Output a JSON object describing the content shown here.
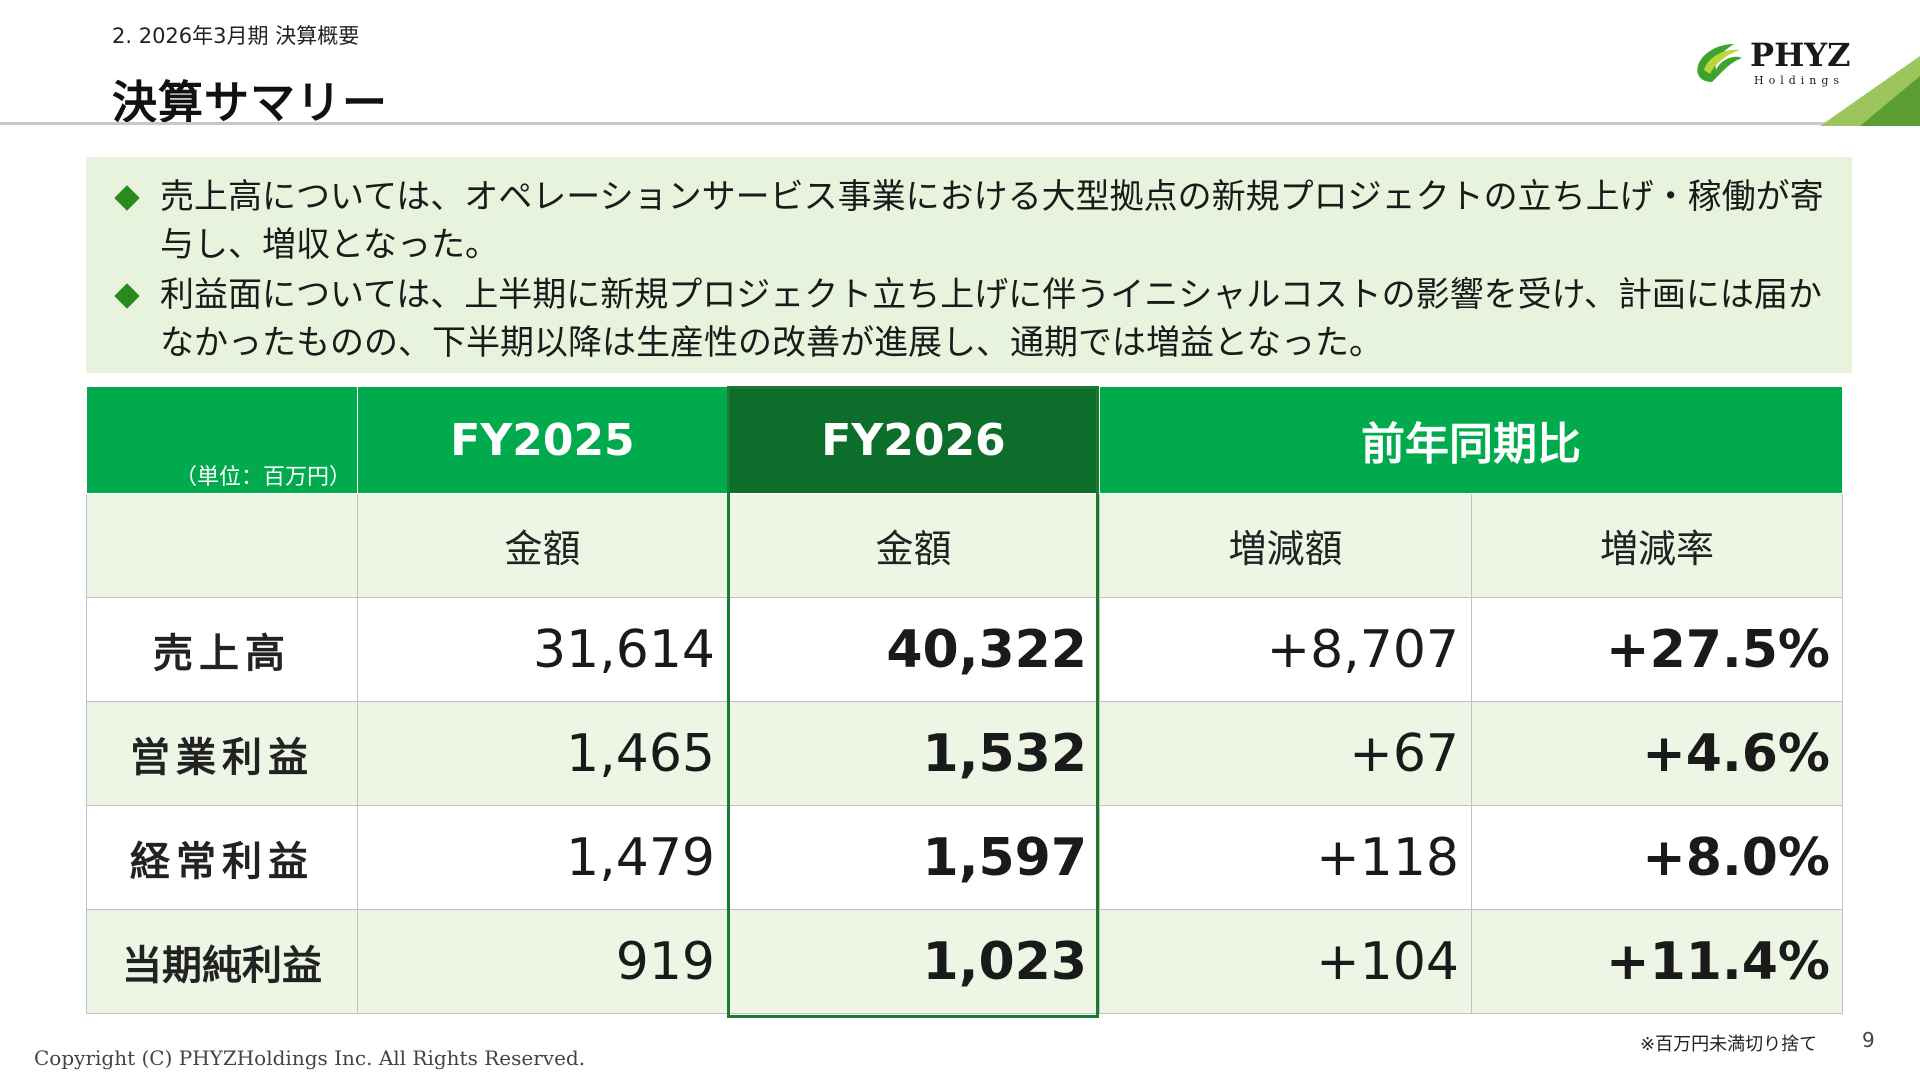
{
  "header": {
    "section": "2. 2026年3月期  決算概要",
    "title": "決算サマリー",
    "logo_text": "PHYZ",
    "logo_sub": "Holdings"
  },
  "summary": [
    "売上高については、オペレーションサービス事業における大型拠点の新規プロジェクトの立ち上げ・稼働が寄与し、増収となった。",
    "利益面については、上半期に新規プロジェクト立ち上げに伴うイニシャルコストの影響を受け、計画には届かなかったものの、下半期以降は生産性の改善が進展し、通期では増益となった。"
  ],
  "table": {
    "unit": "（単位：百万円）",
    "headers": [
      "FY2025",
      "FY2026",
      "前年同期比"
    ],
    "subheaders": [
      "金額",
      "金額",
      "増減額",
      "増減率"
    ],
    "rows": [
      {
        "label": "売上高",
        "fy2025": "31,614",
        "fy2026": "40,322",
        "change": "+8,707",
        "rate": "+27.5%"
      },
      {
        "label": "営業利益",
        "fy2025": "1,465",
        "fy2026": "1,532",
        "change": "+67",
        "rate": "+4.6%"
      },
      {
        "label": "経常利益",
        "fy2025": "1,479",
        "fy2026": "1,597",
        "change": "+118",
        "rate": "+8.0%"
      },
      {
        "label": "当期純利益",
        "fy2025": "919",
        "fy2026": "1,023",
        "change": "+104",
        "rate": "+11.4%"
      }
    ]
  },
  "footer": {
    "note": "※百万円未満切り捨て",
    "page": "9",
    "copyright": "Copyright (C) PHYZHoldings Inc. All Rights Reserved."
  },
  "colors": {
    "header_green": "#00aa4d",
    "fy2026_dark_green": "#0c6e2a",
    "summary_bg": "#e7f3dd",
    "row_light_green": "#edf6e5",
    "bullet": "#2a8a1c"
  }
}
